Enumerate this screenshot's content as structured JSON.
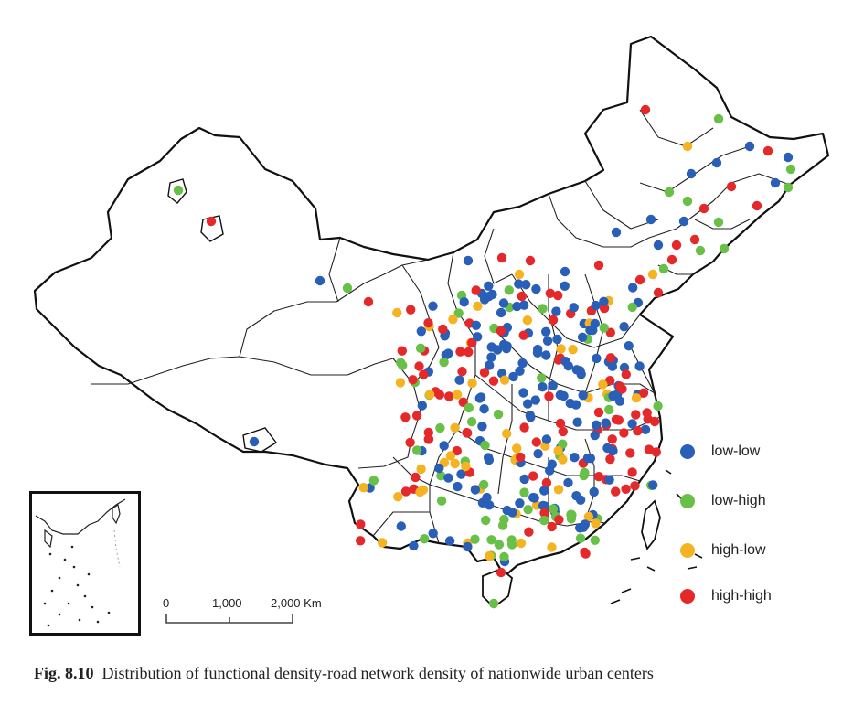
{
  "figure": {
    "number": "Fig. 8.10",
    "caption": "Distribution of functional density-road network density of nationwide urban centers"
  },
  "legend": {
    "items": [
      {
        "label": "low-low",
        "color": "#2a5fb8"
      },
      {
        "label": "low-high",
        "color": "#69c048"
      },
      {
        "label": "high-low",
        "color": "#f5b321"
      },
      {
        "label": "high-high",
        "color": "#e5282a"
      }
    ]
  },
  "scale_bar": {
    "labels": [
      "0",
      "1,000",
      "2,000 Km"
    ]
  },
  "colors": {
    "boundary": "#111111",
    "background": "#ffffff"
  }
}
